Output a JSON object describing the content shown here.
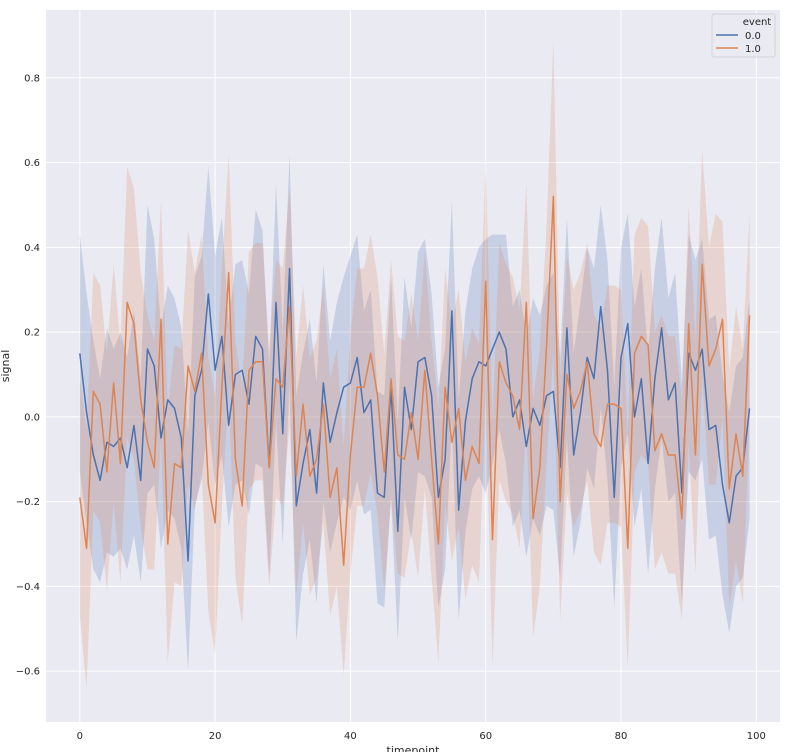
{
  "chart_data": {
    "type": "line",
    "xlabel": "timepoint",
    "ylabel": "signal",
    "xlim": [
      -5,
      103.5
    ],
    "ylim": [
      -0.72,
      0.96
    ],
    "xticks": [
      0,
      20,
      40,
      60,
      80,
      100
    ],
    "yticks": [
      -0.6,
      -0.4,
      -0.2,
      0.0,
      0.2,
      0.4,
      0.6,
      0.8
    ],
    "xtick_labels": [
      "0",
      "20",
      "40",
      "60",
      "80",
      "100"
    ],
    "ytick_labels": [
      "−0.6",
      "−0.4",
      "−0.2",
      "0.0",
      "0.2",
      "0.4",
      "0.6",
      "0.8"
    ],
    "grid": true,
    "legend": {
      "title": "event",
      "placement": "top-right"
    },
    "series": [
      {
        "name": "0.0",
        "color": "#4c72b0",
        "values": [
          0.15,
          0.01,
          -0.09,
          -0.15,
          -0.06,
          -0.07,
          -0.05,
          -0.12,
          -0.02,
          -0.15,
          0.16,
          0.12,
          -0.05,
          0.04,
          0.02,
          -0.05,
          -0.34,
          0.05,
          0.11,
          0.29,
          0.11,
          0.19,
          -0.02,
          0.1,
          0.11,
          0.03,
          0.19,
          0.16,
          -0.12,
          0.27,
          -0.04,
          0.35,
          -0.21,
          -0.11,
          -0.03,
          -0.18,
          0.08,
          -0.06,
          0.01,
          0.07,
          0.08,
          0.14,
          0.01,
          0.04,
          -0.18,
          -0.19,
          0.07,
          -0.27,
          0.07,
          -0.03,
          0.13,
          0.14,
          0.05,
          -0.19,
          -0.1,
          0.25,
          -0.22,
          -0.01,
          0.09,
          0.13,
          0.12,
          0.16,
          0.2,
          0.16,
          0.0,
          0.04,
          -0.07,
          0.02,
          -0.02,
          0.05,
          0.06,
          -0.12,
          0.21,
          -0.09,
          0.01,
          0.14,
          0.09,
          0.26,
          0.11,
          -0.19,
          0.14,
          0.22,
          0.0,
          0.09,
          -0.11,
          0.09,
          0.21,
          0.04,
          0.08,
          -0.18,
          0.15,
          0.11,
          0.16,
          -0.03,
          -0.02,
          -0.16,
          -0.25,
          -0.14,
          -0.12,
          0.02
        ],
        "ci_upper": [
          0.43,
          0.29,
          0.18,
          0.09,
          0.21,
          0.16,
          0.2,
          0.14,
          0.25,
          0.09,
          0.5,
          0.42,
          0.21,
          0.31,
          0.28,
          0.21,
          -0.04,
          0.33,
          0.38,
          0.59,
          0.38,
          0.47,
          0.22,
          0.36,
          0.37,
          0.29,
          0.49,
          0.44,
          0.12,
          0.55,
          0.2,
          0.62,
          0.05,
          0.15,
          0.23,
          0.08,
          0.36,
          0.18,
          0.27,
          0.33,
          0.38,
          0.43,
          0.25,
          0.3,
          0.06,
          0.05,
          0.33,
          -0.01,
          0.33,
          0.21,
          0.39,
          0.42,
          0.29,
          0.07,
          0.16,
          0.51,
          0.04,
          0.25,
          0.35,
          0.4,
          0.42,
          0.43,
          0.43,
          0.43,
          0.26,
          0.3,
          0.19,
          0.28,
          0.24,
          0.31,
          0.34,
          0.14,
          0.47,
          0.15,
          0.27,
          0.4,
          0.35,
          0.5,
          0.37,
          0.07,
          0.4,
          0.48,
          0.26,
          0.35,
          0.15,
          0.35,
          0.47,
          0.28,
          0.34,
          0.08,
          0.43,
          0.37,
          0.42,
          0.23,
          0.24,
          0.1,
          0.01,
          0.12,
          0.14,
          0.28
        ],
        "ci_lower": [
          -0.13,
          -0.25,
          -0.36,
          -0.39,
          -0.32,
          -0.33,
          -0.31,
          -0.36,
          -0.28,
          -0.39,
          -0.18,
          -0.16,
          -0.31,
          -0.22,
          -0.24,
          -0.31,
          -0.6,
          -0.21,
          -0.15,
          -0.01,
          -0.16,
          -0.09,
          -0.26,
          -0.16,
          -0.15,
          -0.23,
          -0.11,
          -0.12,
          -0.38,
          -0.01,
          -0.3,
          0.08,
          -0.53,
          -0.37,
          -0.29,
          -0.44,
          -0.2,
          -0.32,
          -0.25,
          -0.19,
          -0.22,
          -0.15,
          -0.23,
          -0.22,
          -0.44,
          -0.45,
          -0.19,
          -0.53,
          -0.19,
          -0.29,
          -0.13,
          -0.14,
          -0.19,
          -0.45,
          -0.36,
          -0.01,
          -0.48,
          -0.27,
          -0.17,
          -0.14,
          -0.18,
          -0.11,
          -0.03,
          -0.11,
          -0.26,
          -0.22,
          -0.33,
          -0.24,
          -0.28,
          -0.21,
          -0.22,
          -0.38,
          -0.05,
          -0.33,
          -0.25,
          -0.12,
          -0.17,
          0.02,
          -0.15,
          -0.45,
          -0.12,
          -0.04,
          -0.26,
          -0.17,
          -0.37,
          -0.17,
          -0.05,
          -0.2,
          -0.18,
          -0.44,
          -0.13,
          -0.15,
          -0.1,
          -0.29,
          -0.28,
          -0.42,
          -0.51,
          -0.4,
          -0.38,
          -0.24
        ]
      },
      {
        "name": "1.0",
        "color": "#dd8452",
        "values": [
          -0.19,
          -0.31,
          0.06,
          0.03,
          -0.13,
          0.08,
          -0.11,
          0.27,
          0.22,
          0.04,
          -0.06,
          -0.12,
          0.23,
          -0.3,
          -0.11,
          -0.12,
          0.12,
          0.06,
          0.15,
          -0.16,
          -0.25,
          0.07,
          0.34,
          -0.1,
          -0.21,
          0.11,
          0.13,
          0.13,
          -0.12,
          0.09,
          0.07,
          0.26,
          -0.14,
          0.03,
          -0.14,
          -0.1,
          0.03,
          -0.19,
          -0.12,
          -0.35,
          -0.09,
          0.07,
          0.07,
          0.15,
          0.05,
          -0.13,
          0.09,
          -0.09,
          -0.1,
          0.01,
          -0.1,
          0.11,
          -0.1,
          -0.3,
          0.07,
          -0.06,
          0.02,
          -0.15,
          -0.07,
          -0.11,
          0.32,
          -0.29,
          0.13,
          0.08,
          0.05,
          -0.03,
          0.27,
          -0.24,
          -0.12,
          0.17,
          0.52,
          -0.2,
          0.1,
          0.02,
          0.06,
          0.13,
          -0.04,
          -0.07,
          0.03,
          0.03,
          0.02,
          -0.31,
          0.15,
          0.19,
          0.17,
          -0.08,
          -0.04,
          -0.09,
          -0.09,
          -0.24,
          0.22,
          -0.09,
          0.36,
          0.12,
          0.16,
          0.23,
          -0.17,
          -0.04,
          -0.14,
          0.24
        ],
        "ci_upper": [
          0.09,
          -0.03,
          0.34,
          0.31,
          0.15,
          0.36,
          0.17,
          0.59,
          0.54,
          0.34,
          0.24,
          0.18,
          0.51,
          0.02,
          0.17,
          0.16,
          0.44,
          0.34,
          0.43,
          0.14,
          0.05,
          0.35,
          0.62,
          0.18,
          0.07,
          0.39,
          0.41,
          0.41,
          0.16,
          0.37,
          0.35,
          0.54,
          0.14,
          0.31,
          0.14,
          0.18,
          0.31,
          0.09,
          0.16,
          -0.07,
          0.19,
          0.35,
          0.35,
          0.43,
          0.33,
          0.15,
          0.37,
          0.19,
          0.18,
          0.29,
          0.18,
          0.39,
          0.18,
          0.02,
          0.35,
          0.22,
          0.3,
          0.13,
          0.21,
          0.17,
          0.6,
          -0.01,
          0.41,
          0.36,
          0.33,
          0.25,
          0.55,
          0.04,
          0.16,
          0.45,
          0.89,
          0.08,
          0.38,
          0.3,
          0.34,
          0.41,
          0.24,
          0.21,
          0.31,
          0.31,
          0.3,
          -0.03,
          0.43,
          0.47,
          0.45,
          0.2,
          0.24,
          0.19,
          0.19,
          0.04,
          0.5,
          0.19,
          0.63,
          0.4,
          0.48,
          0.46,
          0.11,
          0.26,
          0.16,
          0.48
        ],
        "ci_lower": [
          -0.47,
          -0.64,
          -0.22,
          -0.25,
          -0.41,
          -0.2,
          -0.39,
          -0.05,
          -0.1,
          -0.26,
          -0.36,
          -0.36,
          -0.05,
          -0.58,
          -0.39,
          -0.4,
          -0.16,
          -0.22,
          -0.13,
          -0.46,
          -0.56,
          -0.21,
          0.06,
          -0.38,
          -0.49,
          -0.17,
          -0.15,
          -0.15,
          -0.4,
          -0.19,
          -0.21,
          -0.02,
          -0.42,
          -0.25,
          -0.42,
          -0.38,
          -0.25,
          -0.47,
          -0.4,
          -0.61,
          -0.37,
          -0.21,
          -0.21,
          -0.13,
          -0.23,
          -0.41,
          -0.19,
          -0.37,
          -0.38,
          -0.27,
          -0.38,
          -0.17,
          -0.38,
          -0.58,
          -0.21,
          -0.34,
          -0.26,
          -0.43,
          -0.35,
          -0.39,
          0.04,
          -0.59,
          -0.15,
          -0.2,
          -0.23,
          -0.31,
          -0.01,
          -0.52,
          -0.4,
          -0.11,
          0.15,
          -0.48,
          -0.18,
          -0.26,
          -0.22,
          -0.15,
          -0.32,
          -0.35,
          -0.25,
          -0.25,
          -0.26,
          -0.59,
          -0.13,
          -0.09,
          -0.11,
          -0.36,
          -0.32,
          -0.37,
          -0.37,
          -0.48,
          -0.06,
          -0.37,
          0.09,
          -0.16,
          -0.16,
          0.0,
          -0.45,
          -0.34,
          -0.44,
          0.0
        ]
      }
    ]
  }
}
